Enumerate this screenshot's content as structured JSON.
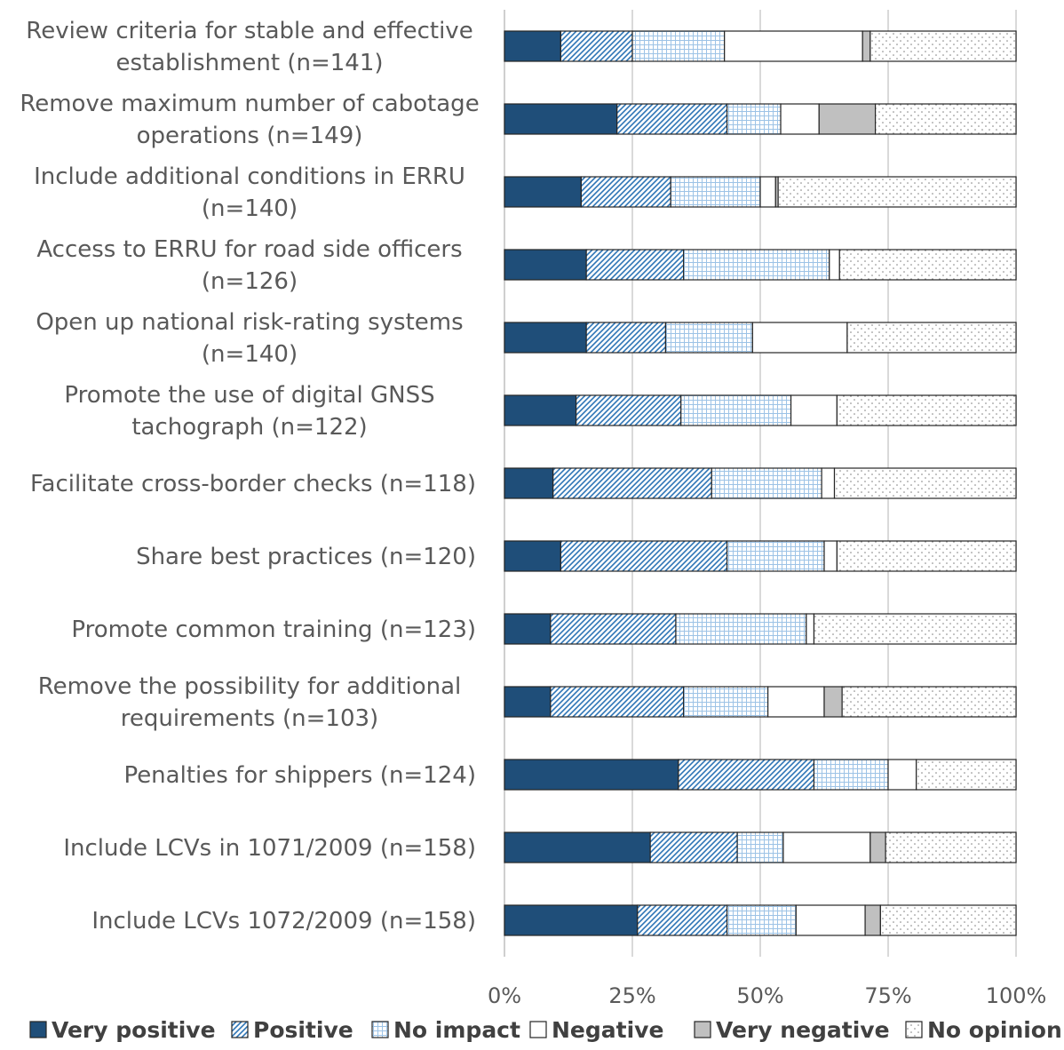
{
  "chart_data": {
    "type": "bar",
    "orientation": "horizontal",
    "stacked": "percent",
    "categories": [
      [
        "Review criteria for stable and effective",
        "establishment (n=141)"
      ],
      [
        "Remove maximum number of cabotage",
        "operations (n=149)"
      ],
      [
        "Include additional conditions in ERRU",
        "(n=140)"
      ],
      [
        "Access to ERRU for road side officers",
        "(n=126)"
      ],
      [
        "Open up national risk-rating systems",
        "(n=140)"
      ],
      [
        "Promote the use of digital GNSS",
        "tachograph (n=122)"
      ],
      [
        "Facilitate cross-border checks (n=118)"
      ],
      [
        "Share best practices (n=120)"
      ],
      [
        "Promote common training (n=123)"
      ],
      [
        "Remove the possibility for additional",
        "requirements (n=103)"
      ],
      [
        "Penalties for shippers (n=124)"
      ],
      [
        "Include LCVs in 1071/2009 (n=158)"
      ],
      [
        "Include LCVs 1072/2009 (n=158)"
      ]
    ],
    "series": [
      {
        "name": "Very positive",
        "color": "#1f4e79",
        "pattern": "solid",
        "values": [
          11,
          22,
          15,
          16,
          16,
          14,
          9.5,
          11,
          9,
          9,
          34,
          28.5,
          26
        ]
      },
      {
        "name": "Positive",
        "color": "#2e75b6",
        "pattern": "diagonal",
        "values": [
          14,
          21.5,
          17.5,
          19,
          15.5,
          20.5,
          31,
          32.5,
          24.5,
          26,
          26.5,
          17,
          17.5
        ]
      },
      {
        "name": "No impact",
        "color": "#9dc3e6",
        "pattern": "grid",
        "values": [
          18,
          10.5,
          17.5,
          28.5,
          17,
          21.5,
          21.5,
          19,
          25.5,
          16.5,
          14.5,
          9,
          13.5
        ]
      },
      {
        "name": "Negative",
        "color": "#ffffff",
        "pattern": "none",
        "values": [
          27,
          7.5,
          3,
          2,
          18.5,
          9,
          2.5,
          2.5,
          1.5,
          11,
          5.5,
          17,
          13.5
        ]
      },
      {
        "name": "Very negative",
        "color": "#c0c0c0",
        "pattern": "solid",
        "values": [
          1.5,
          11,
          0.5,
          0,
          0,
          0,
          0,
          0,
          0,
          3.5,
          0,
          3,
          3
        ]
      },
      {
        "name": "No opinion",
        "color": "#ffffff",
        "pattern": "dots",
        "values": [
          28.5,
          27.5,
          46.5,
          34.5,
          33,
          35,
          35.5,
          35,
          39.5,
          34,
          19.5,
          25.5,
          26.5
        ]
      }
    ],
    "xlim": [
      0,
      100
    ],
    "xticks": [
      "0%",
      "25%",
      "50%",
      "75%",
      "100%"
    ],
    "grid": true,
    "legend_position": "bottom"
  }
}
